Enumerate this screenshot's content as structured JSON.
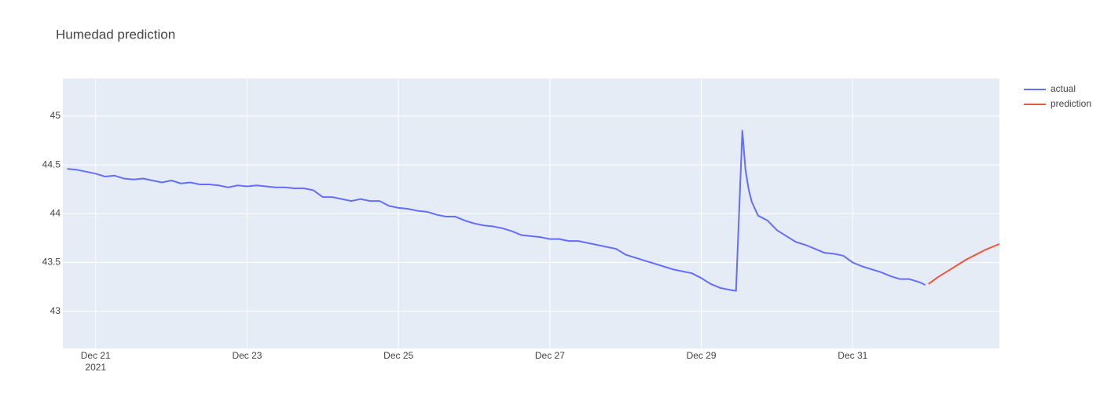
{
  "chart_data": {
    "type": "line",
    "title": "Humedad prediction",
    "xlim": [
      "2021-12-20T13:36",
      "2022-01-01T22:30"
    ],
    "xticks": [
      {
        "value": "2021-12-21T00:00",
        "label": "Dec 21"
      },
      {
        "value": "2021-12-23T00:00",
        "label": "Dec 23"
      },
      {
        "value": "2021-12-25T00:00",
        "label": "Dec 25"
      },
      {
        "value": "2021-12-27T00:00",
        "label": "Dec 27"
      },
      {
        "value": "2021-12-29T00:00",
        "label": "Dec 29"
      },
      {
        "value": "2021-12-31T00:00",
        "label": "Dec 31"
      }
    ],
    "x_year": "2021",
    "ylim": [
      42.62,
      45.385
    ],
    "yticks": [
      43,
      43.5,
      44,
      44.5,
      45
    ],
    "grid": true,
    "legend": "top-right",
    "series": [
      {
        "name": "actual",
        "color": "#636efa",
        "x": [
          "2021-12-20T15:00",
          "2021-12-20T18:00",
          "2021-12-20T21:00",
          "2021-12-21T00:00",
          "2021-12-21T03:00",
          "2021-12-21T06:00",
          "2021-12-21T09:00",
          "2021-12-21T12:00",
          "2021-12-21T15:00",
          "2021-12-21T18:00",
          "2021-12-21T21:00",
          "2021-12-22T00:00",
          "2021-12-22T03:00",
          "2021-12-22T06:00",
          "2021-12-22T09:00",
          "2021-12-22T12:00",
          "2021-12-22T15:00",
          "2021-12-22T18:00",
          "2021-12-22T21:00",
          "2021-12-23T00:00",
          "2021-12-23T03:00",
          "2021-12-23T06:00",
          "2021-12-23T09:00",
          "2021-12-23T12:00",
          "2021-12-23T15:00",
          "2021-12-23T18:00",
          "2021-12-23T21:00",
          "2021-12-24T00:00",
          "2021-12-24T03:00",
          "2021-12-24T06:00",
          "2021-12-24T09:00",
          "2021-12-24T12:00",
          "2021-12-24T15:00",
          "2021-12-24T18:00",
          "2021-12-24T21:00",
          "2021-12-25T00:00",
          "2021-12-25T03:00",
          "2021-12-25T06:00",
          "2021-12-25T09:00",
          "2021-12-25T12:00",
          "2021-12-25T15:00",
          "2021-12-25T18:00",
          "2021-12-25T21:00",
          "2021-12-26T00:00",
          "2021-12-26T03:00",
          "2021-12-26T06:00",
          "2021-12-26T09:00",
          "2021-12-26T12:00",
          "2021-12-26T15:00",
          "2021-12-26T18:00",
          "2021-12-26T21:00",
          "2021-12-27T00:00",
          "2021-12-27T03:00",
          "2021-12-27T06:00",
          "2021-12-27T09:00",
          "2021-12-27T12:00",
          "2021-12-27T15:00",
          "2021-12-27T18:00",
          "2021-12-27T21:00",
          "2021-12-28T00:00",
          "2021-12-28T03:00",
          "2021-12-28T06:00",
          "2021-12-28T09:00",
          "2021-12-28T12:00",
          "2021-12-28T15:00",
          "2021-12-28T18:00",
          "2021-12-28T21:00",
          "2021-12-29T00:00",
          "2021-12-29T03:00",
          "2021-12-29T06:00",
          "2021-12-29T09:00",
          "2021-12-29T11:00",
          "2021-12-29T13:00",
          "2021-12-29T14:00",
          "2021-12-29T15:00",
          "2021-12-29T16:00",
          "2021-12-29T18:00",
          "2021-12-29T21:00",
          "2021-12-30T00:00",
          "2021-12-30T03:00",
          "2021-12-30T06:00",
          "2021-12-30T09:00",
          "2021-12-30T12:00",
          "2021-12-30T15:00",
          "2021-12-30T18:00",
          "2021-12-30T21:00",
          "2021-12-31T00:00",
          "2021-12-31T03:00",
          "2021-12-31T06:00",
          "2021-12-31T09:00",
          "2021-12-31T12:00",
          "2021-12-31T15:00",
          "2021-12-31T18:00",
          "2021-12-31T21:00",
          "2021-12-31T23:00"
        ],
        "values": [
          44.46,
          44.45,
          44.43,
          44.41,
          44.38,
          44.39,
          44.36,
          44.35,
          44.36,
          44.34,
          44.32,
          44.34,
          44.31,
          44.32,
          44.3,
          44.3,
          44.29,
          44.27,
          44.29,
          44.28,
          44.29,
          44.28,
          44.27,
          44.27,
          44.26,
          44.26,
          44.24,
          44.17,
          44.17,
          44.15,
          44.13,
          44.15,
          44.13,
          44.13,
          44.08,
          44.06,
          44.05,
          44.03,
          44.02,
          43.99,
          43.97,
          43.97,
          43.93,
          43.9,
          43.88,
          43.87,
          43.85,
          43.82,
          43.78,
          43.77,
          43.76,
          43.74,
          43.74,
          43.72,
          43.72,
          43.7,
          43.68,
          43.66,
          43.64,
          43.58,
          43.55,
          43.52,
          43.49,
          43.46,
          43.43,
          43.41,
          43.39,
          43.34,
          43.28,
          43.24,
          43.22,
          43.21,
          44.85,
          44.45,
          44.25,
          44.12,
          43.98,
          43.93,
          43.83,
          43.77,
          43.71,
          43.68,
          43.64,
          43.6,
          43.59,
          43.57,
          43.5,
          43.46,
          43.43,
          43.4,
          43.36,
          43.33,
          43.33,
          43.3,
          43.27
        ]
      },
      {
        "name": "prediction",
        "color": "#ef553b",
        "x": [
          "2022-01-01T00:00",
          "2022-01-01T03:00",
          "2022-01-01T06:00",
          "2022-01-01T09:00",
          "2022-01-01T12:00",
          "2022-01-01T15:00",
          "2022-01-01T18:00",
          "2022-01-01T21:00",
          "2022-01-01T22:30"
        ],
        "values": [
          43.28,
          43.35,
          43.41,
          43.47,
          43.53,
          43.58,
          43.63,
          43.67,
          43.69
        ]
      }
    ]
  }
}
